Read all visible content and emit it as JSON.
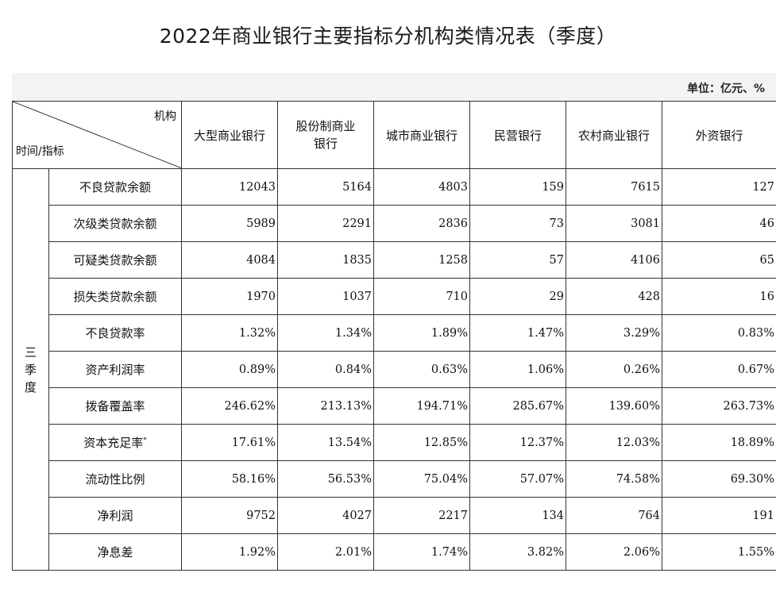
{
  "title": "2022年商业银行主要指标分机构类情况表（季度）",
  "unit": "单位：亿元、%",
  "header": {
    "corner_top": "机构",
    "corner_bottom": "时间/指标",
    "columns": [
      "大型商业银行",
      "股份制商业银行",
      "城市商业银行",
      "民营银行",
      "农村商业银行",
      "外资银行"
    ]
  },
  "period": "三季度",
  "rows": [
    {
      "label": "不良贷款余额",
      "values": [
        "12043",
        "5164",
        "4803",
        "159",
        "7615",
        "127"
      ]
    },
    {
      "label": "次级类贷款余额",
      "values": [
        "5989",
        "2291",
        "2836",
        "73",
        "3081",
        "46"
      ]
    },
    {
      "label": "可疑类贷款余额",
      "values": [
        "4084",
        "1835",
        "1258",
        "57",
        "4106",
        "65"
      ]
    },
    {
      "label": "损失类贷款余额",
      "values": [
        "1970",
        "1037",
        "710",
        "29",
        "428",
        "16"
      ]
    },
    {
      "label": "不良贷款率",
      "values": [
        "1.32%",
        "1.34%",
        "1.89%",
        "1.47%",
        "3.29%",
        "0.83%"
      ]
    },
    {
      "label": "资产利润率",
      "values": [
        "0.89%",
        "0.84%",
        "0.63%",
        "1.06%",
        "0.26%",
        "0.67%"
      ]
    },
    {
      "label": "拨备覆盖率",
      "values": [
        "246.62%",
        "213.13%",
        "194.71%",
        "285.67%",
        "139.60%",
        "263.73%"
      ]
    },
    {
      "label": "资本充足率",
      "sup": "*",
      "values": [
        "17.61%",
        "13.54%",
        "12.85%",
        "12.37%",
        "12.03%",
        "18.89%"
      ]
    },
    {
      "label": "流动性比例",
      "values": [
        "58.16%",
        "56.53%",
        "75.04%",
        "57.07%",
        "74.58%",
        "69.30%"
      ]
    },
    {
      "label": "净利润",
      "values": [
        "9752",
        "4027",
        "2217",
        "134",
        "764",
        "191"
      ]
    },
    {
      "label": "净息差",
      "values": [
        "1.92%",
        "2.01%",
        "1.74%",
        "3.82%",
        "2.06%",
        "1.55%"
      ]
    }
  ]
}
